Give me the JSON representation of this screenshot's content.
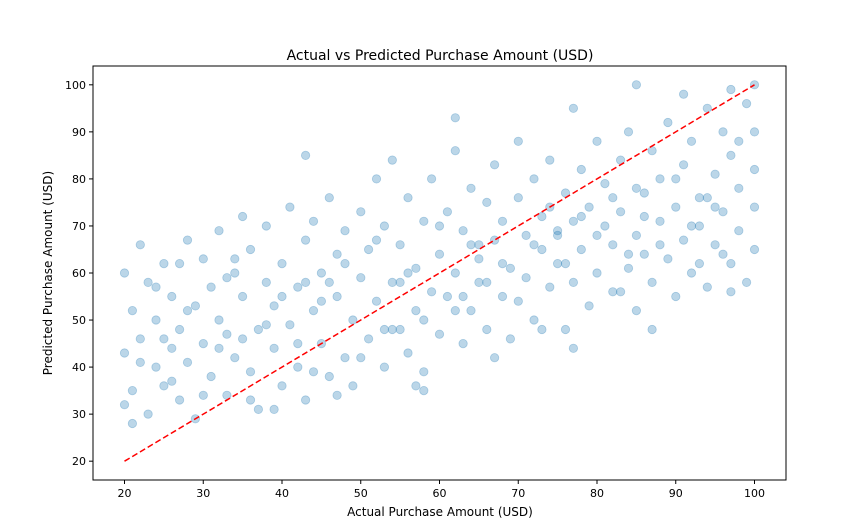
{
  "chart_data": {
    "type": "scatter",
    "title": "Actual vs Predicted Purchase Amount (USD)",
    "xlabel": "Actual Purchase Amount (USD)",
    "ylabel": "Predicted Purchase Amount (USD)",
    "xlim": [
      16,
      104
    ],
    "ylim": [
      16,
      104
    ],
    "xticks": [
      "20",
      "30",
      "40",
      "50",
      "60",
      "70",
      "80",
      "90",
      "100"
    ],
    "yticks": [
      "20",
      "30",
      "40",
      "50",
      "60",
      "70",
      "80",
      "90",
      "100"
    ],
    "grid": false,
    "marker_color": "#1f77b4",
    "marker_opacity": 0.3,
    "reference_line": {
      "style": "dashed",
      "color": "#ff0000",
      "from": [
        20,
        20
      ],
      "to": [
        100,
        100
      ]
    },
    "series": [
      {
        "values": [
          [
            20,
            43
          ],
          [
            20,
            60
          ],
          [
            21,
            35
          ],
          [
            21,
            52
          ],
          [
            22,
            46
          ],
          [
            22,
            66
          ],
          [
            23,
            30
          ],
          [
            23,
            58
          ],
          [
            24,
            40
          ],
          [
            24,
            50
          ],
          [
            25,
            62
          ],
          [
            25,
            36
          ],
          [
            26,
            44
          ],
          [
            26,
            55
          ],
          [
            27,
            33
          ],
          [
            27,
            48
          ],
          [
            28,
            67
          ],
          [
            28,
            41
          ],
          [
            29,
            53
          ],
          [
            29,
            29
          ],
          [
            30,
            45
          ],
          [
            30,
            63
          ],
          [
            31,
            38
          ],
          [
            31,
            57
          ],
          [
            32,
            50
          ],
          [
            32,
            69
          ],
          [
            33,
            34
          ],
          [
            33,
            47
          ],
          [
            34,
            60
          ],
          [
            34,
            42
          ],
          [
            35,
            55
          ],
          [
            35,
            72
          ],
          [
            36,
            39
          ],
          [
            36,
            65
          ],
          [
            37,
            48
          ],
          [
            37,
            31
          ],
          [
            38,
            58
          ],
          [
            38,
            70
          ],
          [
            39,
            44
          ],
          [
            39,
            53
          ],
          [
            40,
            36
          ],
          [
            40,
            62
          ],
          [
            41,
            74
          ],
          [
            41,
            49
          ],
          [
            42,
            57
          ],
          [
            42,
            40
          ],
          [
            43,
            67
          ],
          [
            43,
            33
          ],
          [
            44,
            52
          ],
          [
            44,
            71
          ],
          [
            45,
            45
          ],
          [
            45,
            60
          ],
          [
            46,
            38
          ],
          [
            46,
            76
          ],
          [
            47,
            55
          ],
          [
            47,
            64
          ],
          [
            48,
            42
          ],
          [
            48,
            69
          ],
          [
            49,
            50
          ],
          [
            49,
            36
          ],
          [
            50,
            59
          ],
          [
            50,
            73
          ],
          [
            51,
            46
          ],
          [
            51,
            65
          ],
          [
            52,
            80
          ],
          [
            52,
            54
          ],
          [
            53,
            40
          ],
          [
            53,
            70
          ],
          [
            54,
            58
          ],
          [
            54,
            84
          ],
          [
            55,
            48
          ],
          [
            55,
            66
          ],
          [
            56,
            76
          ],
          [
            56,
            43
          ],
          [
            57,
            61
          ],
          [
            57,
            52
          ],
          [
            58,
            71
          ],
          [
            58,
            39
          ],
          [
            59,
            56
          ],
          [
            59,
            80
          ],
          [
            60,
            64
          ],
          [
            60,
            47
          ],
          [
            61,
            73
          ],
          [
            61,
            55
          ],
          [
            62,
            86
          ],
          [
            62,
            60
          ],
          [
            63,
            45
          ],
          [
            63,
            69
          ],
          [
            64,
            78
          ],
          [
            64,
            52
          ],
          [
            65,
            63
          ],
          [
            65,
            58
          ],
          [
            66,
            75
          ],
          [
            66,
            48
          ],
          [
            67,
            67
          ],
          [
            67,
            83
          ],
          [
            68,
            55
          ],
          [
            68,
            71
          ],
          [
            69,
            61
          ],
          [
            69,
            46
          ],
          [
            70,
            76
          ],
          [
            70,
            88
          ],
          [
            71,
            59
          ],
          [
            71,
            68
          ],
          [
            72,
            80
          ],
          [
            72,
            50
          ],
          [
            73,
            65
          ],
          [
            73,
            72
          ],
          [
            74,
            57
          ],
          [
            74,
            84
          ],
          [
            75,
            69
          ],
          [
            75,
            62
          ],
          [
            76,
            77
          ],
          [
            76,
            48
          ],
          [
            77,
            71
          ],
          [
            77,
            58
          ],
          [
            78,
            82
          ],
          [
            78,
            65
          ],
          [
            79,
            53
          ],
          [
            79,
            74
          ],
          [
            80,
            88
          ],
          [
            80,
            60
          ],
          [
            81,
            70
          ],
          [
            81,
            79
          ],
          [
            82,
            56
          ],
          [
            82,
            66
          ],
          [
            83,
            84
          ],
          [
            83,
            73
          ],
          [
            84,
            61
          ],
          [
            84,
            90
          ],
          [
            85,
            68
          ],
          [
            85,
            52
          ],
          [
            86,
            77
          ],
          [
            86,
            64
          ],
          [
            87,
            86
          ],
          [
            87,
            58
          ],
          [
            88,
            71
          ],
          [
            88,
            80
          ],
          [
            89,
            63
          ],
          [
            89,
            92
          ],
          [
            90,
            74
          ],
          [
            90,
            55
          ],
          [
            91,
            83
          ],
          [
            91,
            67
          ],
          [
            92,
            88
          ],
          [
            92,
            60
          ],
          [
            93,
            76
          ],
          [
            93,
            70
          ],
          [
            94,
            95
          ],
          [
            94,
            57
          ],
          [
            95,
            81
          ],
          [
            95,
            66
          ],
          [
            96,
            73
          ],
          [
            96,
            90
          ],
          [
            97,
            62
          ],
          [
            97,
            85
          ],
          [
            98,
            78
          ],
          [
            98,
            69
          ],
          [
            99,
            96
          ],
          [
            99,
            58
          ],
          [
            100,
            82
          ],
          [
            100,
            65
          ],
          [
            100,
            74
          ],
          [
            100,
            90
          ],
          [
            20,
            32
          ],
          [
            22,
            41
          ],
          [
            24,
            57
          ],
          [
            26,
            37
          ],
          [
            28,
            52
          ],
          [
            30,
            34
          ],
          [
            32,
            44
          ],
          [
            34,
            63
          ],
          [
            36,
            33
          ],
          [
            38,
            49
          ],
          [
            40,
            55
          ],
          [
            42,
            45
          ],
          [
            44,
            39
          ],
          [
            46,
            58
          ],
          [
            48,
            62
          ],
          [
            50,
            42
          ],
          [
            52,
            67
          ],
          [
            54,
            48
          ],
          [
            56,
            60
          ],
          [
            58,
            50
          ],
          [
            60,
            70
          ],
          [
            62,
            52
          ],
          [
            64,
            66
          ],
          [
            66,
            58
          ],
          [
            68,
            62
          ],
          [
            70,
            54
          ],
          [
            72,
            66
          ],
          [
            74,
            74
          ],
          [
            76,
            62
          ],
          [
            78,
            72
          ],
          [
            80,
            68
          ],
          [
            82,
            76
          ],
          [
            84,
            64
          ],
          [
            86,
            72
          ],
          [
            88,
            66
          ],
          [
            90,
            80
          ],
          [
            92,
            70
          ],
          [
            94,
            76
          ],
          [
            96,
            64
          ],
          [
            98,
            88
          ],
          [
            25,
            46
          ],
          [
            35,
            46
          ],
          [
            45,
            54
          ],
          [
            55,
            58
          ],
          [
            65,
            66
          ],
          [
            75,
            68
          ],
          [
            85,
            78
          ],
          [
            95,
            74
          ],
          [
            27,
            62
          ],
          [
            33,
            59
          ],
          [
            43,
            58
          ],
          [
            53,
            48
          ],
          [
            63,
            55
          ],
          [
            73,
            48
          ],
          [
            83,
            56
          ],
          [
            93,
            62
          ],
          [
            21,
            28
          ],
          [
            39,
            31
          ],
          [
            47,
            34
          ],
          [
            57,
            36
          ],
          [
            67,
            42
          ],
          [
            77,
            44
          ],
          [
            87,
            48
          ],
          [
            97,
            56
          ],
          [
            62,
            93
          ],
          [
            43,
            85
          ],
          [
            85,
            100
          ],
          [
            100,
            100
          ],
          [
            97,
            99
          ],
          [
            77,
            95
          ],
          [
            91,
            98
          ],
          [
            58,
            35
          ]
        ]
      }
    ]
  }
}
